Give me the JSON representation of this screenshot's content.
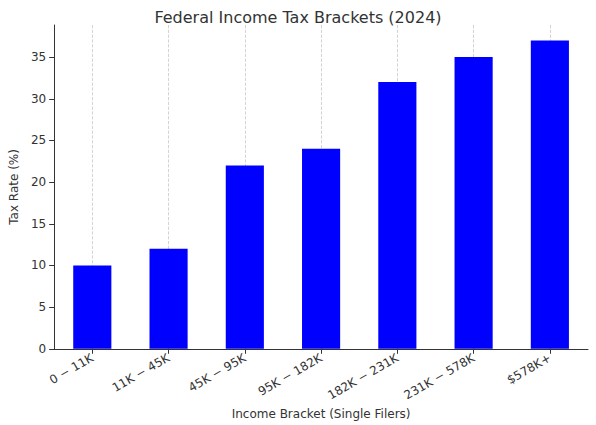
{
  "chart_data": {
    "type": "bar",
    "title": "Federal Income Tax Brackets (2024)",
    "x_label": "Income Bracket (Single Filers)",
    "y_label": "Tax Rate (%)",
    "categories": [
      "0 − 11K",
      "11K − 45K",
      "45K − 95K",
      "95K − 182K",
      "182K − 231K",
      "231K − 578K",
      "$578K+"
    ],
    "values": [
      10,
      12,
      22,
      24,
      32,
      35,
      37
    ],
    "color": "#0000ff",
    "ylim": [
      0,
      38.85
    ],
    "yticks": [
      0,
      5,
      10,
      15,
      20,
      25,
      30,
      35
    ],
    "grid": true
  }
}
